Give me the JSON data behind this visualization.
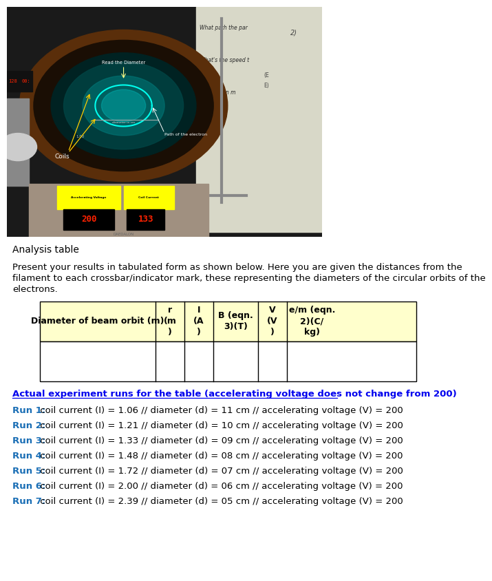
{
  "title": "Analysis table",
  "desc_lines": [
    "Present your results in tabulated form as shown below. Here you are given the distances from the",
    "filament to each crossbar/indicator mark, these representing the diameters of the circular orbits of the",
    "electrons."
  ],
  "table_headers": [
    "Diameter of beam orbit (m)",
    "r\n(m\n)",
    "I\n(A\n)",
    "B (eqn.\n3)(T)",
    "V\n(V\n)",
    "e/m (eqn.\n2)(C/\nkg)"
  ],
  "actual_runs_title": "Actual experiment runs for the table (accelerating voltage does not change from 200)",
  "runs": [
    {
      "label": "Run 1:",
      "text": " coil current (I) = 1.06 // diameter (d) = 11 cm // accelerating voltage (V) = 200"
    },
    {
      "label": "Run 2:",
      "text": " coil current (I) = 1.21 // diameter (d) = 10 cm // accelerating voltage (V) = 200"
    },
    {
      "label": "Run 3:",
      "text": " coil current (I) = 1.33 // diameter (d) = 09 cm // accelerating voltage (V) = 200"
    },
    {
      "label": "Run 4:",
      "text": " coil current (I) = 1.48 // diameter (d) = 08 cm // accelerating voltage (V) = 200"
    },
    {
      "label": "Run 5:",
      "text": " coil current (I) = 1.72 // diameter (d) = 07 cm // accelerating voltage (V) = 200"
    },
    {
      "label": "Run 6:",
      "text": " coil current (I) = 2.00 // diameter (d) = 06 cm // accelerating voltage (V) = 200"
    },
    {
      "label": "Run 7:",
      "text": " coil current (I) = 2.39 // diameter (d) = 05 cm // accelerating voltage (V) = 200"
    }
  ],
  "blue_color": "#0000EE",
  "run_label_color": "#1a6eb5",
  "text_color": "#000000",
  "table_header_bg": "#ffffcc",
  "table_border_color": "#000000",
  "bg_color": "#ffffff"
}
